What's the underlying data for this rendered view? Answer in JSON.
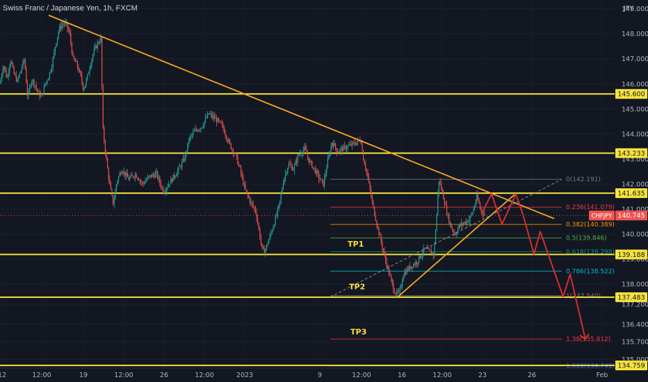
{
  "header": {
    "symbol_title": "Swiss Franc / Japanese Yen, 1h, FXCM",
    "currency": "JPY"
  },
  "colors": {
    "background": "#131722",
    "up": "#26a69a",
    "down": "#ef5350",
    "level": "#f6e33d",
    "trend": "#f5a623",
    "projection": "#d32f2f",
    "axis_text": "#b2b5be",
    "fib_gray": "#787b86",
    "fib_red": "#f23645",
    "fib_orange": "#ff9800",
    "fib_green": "#4caf50",
    "fib_teal": "#089981",
    "fib_cyan": "#00bcd4",
    "fib_blue": "#2962ff"
  },
  "chart_data": {
    "type": "candlestick",
    "title": "Swiss Franc / Japanese Yen, 1h, FXCM",
    "ylabel": "JPY",
    "ylim": [
      134.65,
      149.35
    ],
    "y_ticks": [
      135.0,
      135.7,
      136.4,
      137.2,
      138.0,
      139.0,
      140.0,
      141.0,
      142.0,
      143.0,
      144.0,
      145.0,
      146.0,
      147.0,
      148.0,
      149.0
    ],
    "y_tick_labels": [
      "135.000",
      "135.700",
      "136.400",
      "137.200",
      "138.000",
      "139.000",
      "140.000",
      "141.000",
      "142.000",
      "143.000",
      "144.000",
      "145.000",
      "146.000",
      "147.000",
      "148.000",
      "149.000"
    ],
    "x_tick_labels": [
      "12",
      "12:00",
      "19",
      "12:00",
      "26",
      "12:00",
      "2023",
      "9",
      "12:00",
      "16",
      "12:00",
      "23",
      "26",
      "Feb"
    ],
    "price_path": [
      [
        0,
        146.0
      ],
      [
        5,
        146.8
      ],
      [
        10,
        146.2
      ],
      [
        15,
        147.0
      ],
      [
        20,
        146.4
      ],
      [
        25,
        146.1
      ],
      [
        35,
        147.0
      ],
      [
        40,
        145.4
      ],
      [
        45,
        146.2
      ],
      [
        50,
        146.0
      ],
      [
        55,
        145.6
      ],
      [
        60,
        145.5
      ],
      [
        65,
        146.0
      ],
      [
        70,
        146.3
      ],
      [
        75,
        146.8
      ],
      [
        80,
        147.6
      ],
      [
        85,
        148.2
      ],
      [
        90,
        148.4
      ],
      [
        95,
        148.4
      ],
      [
        100,
        148.0
      ],
      [
        105,
        147.0
      ],
      [
        110,
        146.8
      ],
      [
        115,
        146.4
      ],
      [
        120,
        145.8
      ],
      [
        125,
        146.2
      ],
      [
        130,
        146.8
      ],
      [
        135,
        147.3
      ],
      [
        140,
        147.6
      ],
      [
        145,
        147.8
      ],
      [
        148,
        144.2
      ],
      [
        152,
        143.2
      ],
      [
        156,
        142.3
      ],
      [
        160,
        141.6
      ],
      [
        163,
        141.2
      ],
      [
        168,
        142.1
      ],
      [
        175,
        142.6
      ],
      [
        185,
        142.2
      ],
      [
        195,
        142.4
      ],
      [
        205,
        142.0
      ],
      [
        215,
        142.3
      ],
      [
        225,
        142.4
      ],
      [
        235,
        141.7
      ],
      [
        245,
        142.1
      ],
      [
        255,
        142.5
      ],
      [
        265,
        143.0
      ],
      [
        272,
        143.8
      ],
      [
        280,
        144.1
      ],
      [
        290,
        144.3
      ],
      [
        300,
        144.8
      ],
      [
        310,
        144.6
      ],
      [
        320,
        144.3
      ],
      [
        330,
        143.6
      ],
      [
        338,
        143.2
      ],
      [
        345,
        142.6
      ],
      [
        352,
        141.8
      ],
      [
        360,
        141.3
      ],
      [
        368,
        140.9
      ],
      [
        375,
        139.7
      ],
      [
        378,
        139.3
      ],
      [
        382,
        139.4
      ],
      [
        388,
        139.9
      ],
      [
        395,
        140.5
      ],
      [
        402,
        141.2
      ],
      [
        408,
        142.2
      ],
      [
        415,
        142.8
      ],
      [
        422,
        142.6
      ],
      [
        430,
        143.2
      ],
      [
        438,
        143.4
      ],
      [
        445,
        142.9
      ],
      [
        452,
        142.6
      ],
      [
        460,
        142.2
      ],
      [
        465,
        142.0
      ],
      [
        472,
        143.0
      ],
      [
        478,
        143.7
      ],
      [
        485,
        143.3
      ],
      [
        492,
        143.4
      ],
      [
        500,
        143.5
      ],
      [
        508,
        143.6
      ],
      [
        515,
        143.7
      ],
      [
        519,
        143.8
      ],
      [
        522,
        143.1
      ],
      [
        528,
        142.4
      ],
      [
        535,
        141.3
      ],
      [
        542,
        140.4
      ],
      [
        548,
        139.7
      ],
      [
        555,
        138.9
      ],
      [
        560,
        138.4
      ],
      [
        565,
        137.9
      ],
      [
        570,
        137.6
      ],
      [
        575,
        137.7
      ],
      [
        580,
        138.4
      ],
      [
        590,
        138.7
      ],
      [
        600,
        138.9
      ],
      [
        610,
        139.4
      ],
      [
        618,
        139.3
      ],
      [
        624,
        139.2
      ],
      [
        628,
        140.7
      ],
      [
        631,
        142.2
      ],
      [
        635,
        141.8
      ],
      [
        640,
        141.2
      ],
      [
        645,
        140.6
      ],
      [
        650,
        140.2
      ],
      [
        655,
        140.0
      ],
      [
        660,
        140.3
      ],
      [
        665,
        140.4
      ],
      [
        670,
        140.5
      ],
      [
        675,
        140.6
      ],
      [
        680,
        140.9
      ],
      [
        686,
        141.5
      ],
      [
        692,
        140.9
      ],
      [
        698,
        140.8
      ]
    ],
    "horizontal_levels": [
      {
        "price": 145.6,
        "label": "145.600"
      },
      {
        "price": 143.233,
        "label": "143.233"
      },
      {
        "price": 141.635,
        "label": "141.635"
      },
      {
        "price": 139.188,
        "label": "139.188"
      },
      {
        "price": 137.483,
        "label": "137.483"
      },
      {
        "price": 134.759,
        "label": "134.759"
      }
    ],
    "current_price": {
      "price": 140.745,
      "label": "140.745",
      "symbol_label": "CHFJPY"
    },
    "trendlines": [
      {
        "from": [
          70,
          148.74
        ],
        "to": [
          797,
          140.62
        ],
        "dashed": false
      },
      {
        "from": [
          572,
          137.49
        ],
        "to": [
          740,
          141.58
        ],
        "dashed": false
      },
      {
        "from": [
          475,
          137.49
        ],
        "to": [
          808,
          142.19
        ],
        "dashed": true
      }
    ],
    "fibonacci": {
      "x_start": 475,
      "x_end": 808,
      "levels": [
        {
          "ratio": "0",
          "price": 142.191,
          "label": "0(142.191)",
          "color_key": "fib_gray"
        },
        {
          "ratio": "0.236",
          "price": 141.079,
          "label": "0.236(141.079)",
          "color_key": "fib_red"
        },
        {
          "ratio": "0.382",
          "price": 140.389,
          "label": "0.382(140.389)",
          "color_key": "fib_orange"
        },
        {
          "ratio": "0.5",
          "price": 139.846,
          "label": "0.5(139.846)",
          "color_key": "fib_green"
        },
        {
          "ratio": "0.618",
          "price": 139.298,
          "label": "0.618(139.298)",
          "color_key": "fib_teal"
        },
        {
          "ratio": "0.786",
          "price": 138.522,
          "label": "0.786(138.522)",
          "color_key": "fib_cyan"
        },
        {
          "ratio": "1",
          "price": 137.54,
          "label": "1(137.540)",
          "color_key": "fib_gray"
        },
        {
          "ratio": "1.38",
          "price": 135.812,
          "label": "1.38(135.812)",
          "color_key": "fib_red"
        },
        {
          "ratio": "1.618",
          "price": 134.741,
          "label": "1.618(134.741)",
          "color_key": "fib_blue"
        }
      ]
    },
    "projection_path": [
      [
        692,
        140.8
      ],
      [
        707,
        141.6
      ],
      [
        722,
        140.4
      ],
      [
        742,
        141.6
      ],
      [
        752,
        140.8
      ],
      [
        768,
        139.2
      ],
      [
        777,
        140.1
      ],
      [
        810,
        137.5
      ],
      [
        820,
        138.4
      ],
      [
        842,
        135.8
      ]
    ],
    "annotations": [
      {
        "text": "TP1",
        "x": 500,
        "price": 139.5
      },
      {
        "text": "TP2",
        "x": 502,
        "price": 137.8
      },
      {
        "text": "TP3",
        "x": 504,
        "price": 136.0
      }
    ]
  }
}
